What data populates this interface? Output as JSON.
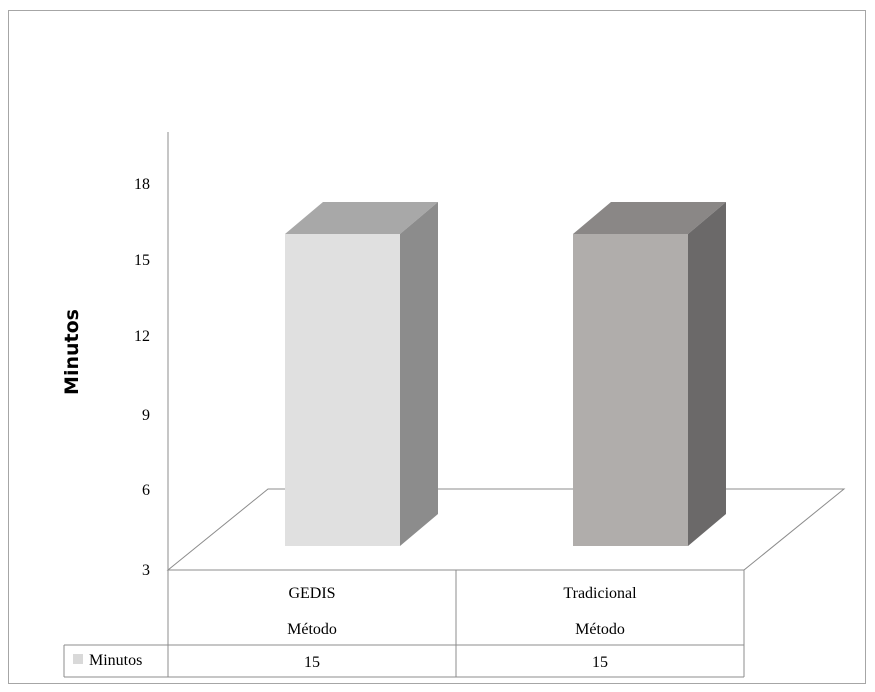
{
  "chart_data": {
    "type": "bar",
    "title": "",
    "xlabel": "Método",
    "ylabel": "Minutos",
    "categories": [
      "GEDIS",
      "Tradicional"
    ],
    "series": [
      {
        "name": "Minutos",
        "values": [
          15,
          15
        ]
      }
    ],
    "yticks": [
      "3",
      "6",
      "9",
      "12",
      "15",
      "18"
    ],
    "ylim": [
      3,
      18
    ],
    "data_table": true,
    "legend": "data-table",
    "colors": {
      "bar1_front": "#e0e0e0",
      "bar1_side": "#8c8c8c",
      "bar1_top": "#a8a8a8",
      "bar2_front": "#b0adab",
      "bar2_side": "#6b6969",
      "bar2_top": "#8a8786",
      "legend_key": "#d9d9d9"
    }
  }
}
